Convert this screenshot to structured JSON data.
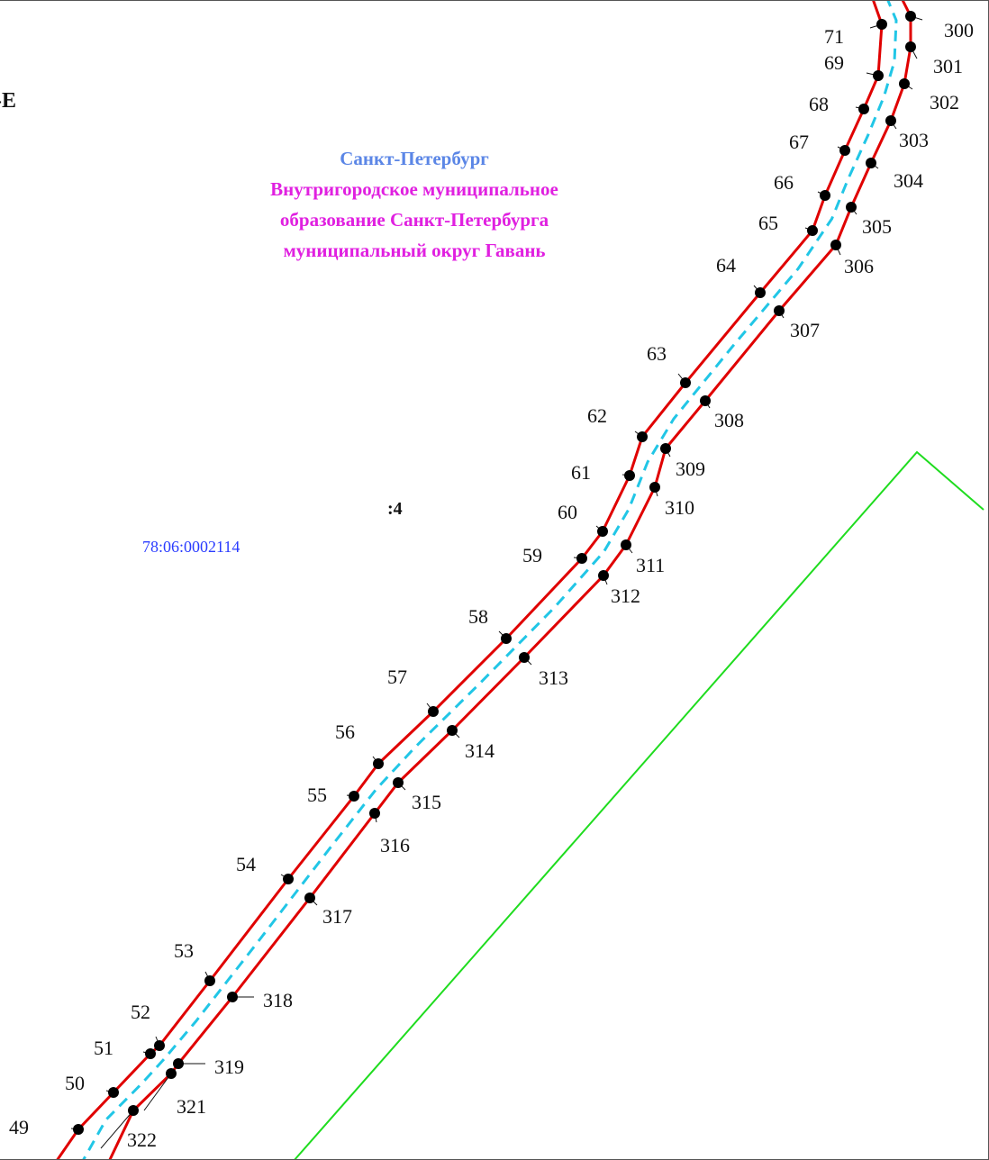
{
  "colors": {
    "boundary": "#e00000",
    "centerline": "#21c6e6",
    "parcel_outline": "#1fdc1f",
    "points": "#000000",
    "city_text": "#5b86e6",
    "municipality_text": "#e020e0",
    "cadastral_text": "#2a3cff"
  },
  "header_fragment": "-E",
  "admin": {
    "city": "Санкт-Петербург",
    "municipality_lines": [
      "Внутригородское муниципальное",
      "образование Санкт-Петербурга",
      "муниципальный округ Гавань"
    ]
  },
  "quarter_label": ":4",
  "cadastral_block": "78:06:0002114",
  "left_boundary_points": [
    {
      "id": "71"
    },
    {
      "id": "69"
    },
    {
      "id": "68"
    },
    {
      "id": "67"
    },
    {
      "id": "66"
    },
    {
      "id": "65"
    },
    {
      "id": "64"
    },
    {
      "id": "63"
    },
    {
      "id": "62"
    },
    {
      "id": "61"
    },
    {
      "id": "60"
    },
    {
      "id": "59"
    },
    {
      "id": "58"
    },
    {
      "id": "57"
    },
    {
      "id": "56"
    },
    {
      "id": "55"
    },
    {
      "id": "54"
    },
    {
      "id": "53"
    },
    {
      "id": "52"
    },
    {
      "id": "51"
    },
    {
      "id": "50"
    },
    {
      "id": "49"
    }
  ],
  "right_boundary_points": [
    {
      "id": "300"
    },
    {
      "id": "301"
    },
    {
      "id": "302"
    },
    {
      "id": "303"
    },
    {
      "id": "304"
    },
    {
      "id": "305"
    },
    {
      "id": "306"
    },
    {
      "id": "307"
    },
    {
      "id": "308"
    },
    {
      "id": "309"
    },
    {
      "id": "310"
    },
    {
      "id": "311"
    },
    {
      "id": "312"
    },
    {
      "id": "313"
    },
    {
      "id": "314"
    },
    {
      "id": "315"
    },
    {
      "id": "316"
    },
    {
      "id": "317"
    },
    {
      "id": "318"
    },
    {
      "id": "319"
    },
    {
      "id": "321"
    },
    {
      "id": "322"
    }
  ]
}
